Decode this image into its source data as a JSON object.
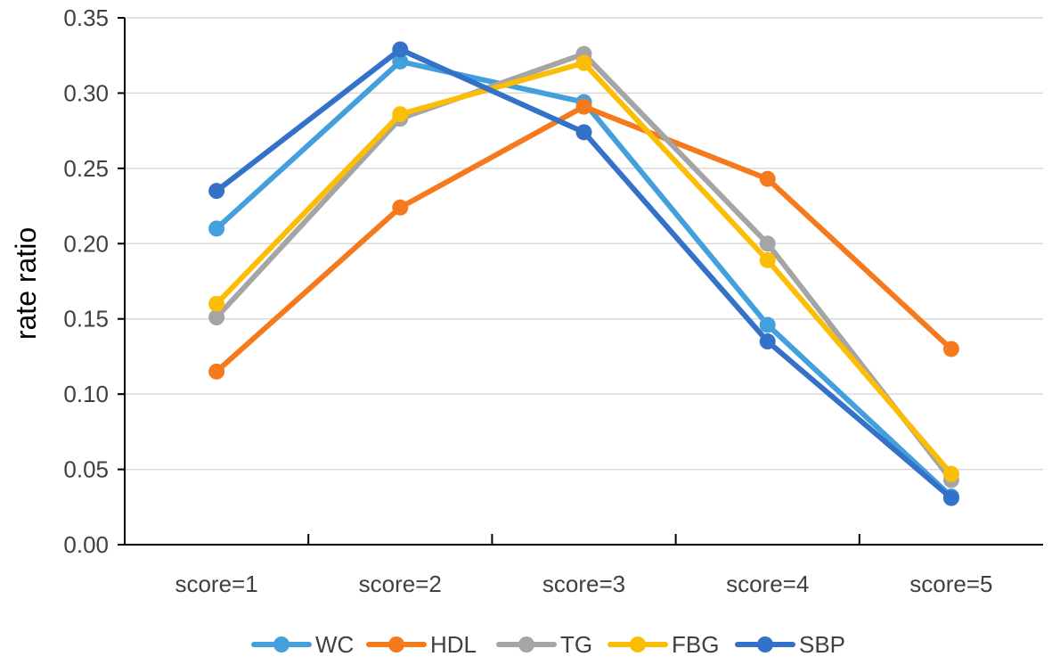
{
  "chart_data": {
    "type": "line",
    "title": "",
    "xlabel": "",
    "ylabel": "rate ratio",
    "ylim": [
      0,
      0.35
    ],
    "yticks": [
      "0.00",
      "0.05",
      "0.10",
      "0.15",
      "0.20",
      "0.25",
      "0.30",
      "0.35"
    ],
    "categories": [
      "score=1",
      "score=2",
      "score=3",
      "score=4",
      "score=5"
    ],
    "grid": true,
    "legend_position": "bottom",
    "series": [
      {
        "name": "WC",
        "color": "#44a0dc",
        "values": [
          0.21,
          0.321,
          0.294,
          0.146,
          0.032
        ]
      },
      {
        "name": "HDL",
        "color": "#f57a1e",
        "values": [
          0.115,
          0.224,
          0.291,
          0.243,
          0.13
        ]
      },
      {
        "name": "TG",
        "color": "#a5a5a5",
        "values": [
          0.151,
          0.283,
          0.326,
          0.2,
          0.043
        ]
      },
      {
        "name": "FBG",
        "color": "#fbbd06",
        "values": [
          0.16,
          0.286,
          0.32,
          0.189,
          0.047
        ]
      },
      {
        "name": "SBP",
        "color": "#3471c8",
        "values": [
          0.235,
          0.329,
          0.274,
          0.135,
          0.031
        ]
      }
    ]
  }
}
